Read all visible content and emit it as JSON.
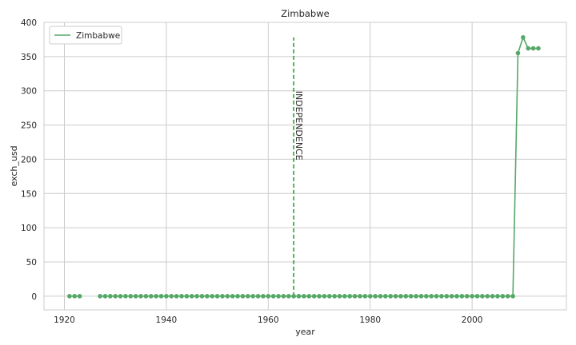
{
  "chart_data": {
    "type": "line",
    "title": "Zimbabwe",
    "xlabel": "year",
    "ylabel": "exch_usd",
    "xlim": [
      1916,
      2018.5
    ],
    "ylim": [
      -20,
      400
    ],
    "xticks": [
      1920,
      1940,
      1960,
      1980,
      2000
    ],
    "yticks": [
      0,
      50,
      100,
      150,
      200,
      250,
      300,
      350,
      400
    ],
    "grid": true,
    "legend": "top-left",
    "series": [
      {
        "name": "Zimbabwe",
        "color": "#55a868",
        "marker": "circle",
        "x": [
          1921,
          1922,
          1923,
          null,
          1927,
          1928,
          1929,
          1930,
          1931,
          1932,
          1933,
          1934,
          1935,
          1936,
          1937,
          1938,
          1939,
          1940,
          1941,
          1942,
          1943,
          1944,
          1945,
          1946,
          1947,
          1948,
          1949,
          1950,
          1951,
          1952,
          1953,
          1954,
          1955,
          1956,
          1957,
          1958,
          1959,
          1960,
          1961,
          1962,
          1963,
          1964,
          1965,
          1966,
          1967,
          1968,
          1969,
          1970,
          1971,
          1972,
          1973,
          1974,
          1975,
          1976,
          1977,
          1978,
          1979,
          1980,
          1981,
          1982,
          1983,
          1984,
          1985,
          1986,
          1987,
          1988,
          1989,
          1990,
          1991,
          1992,
          1993,
          1994,
          1995,
          1996,
          1997,
          1998,
          1999,
          2000,
          2001,
          2002,
          2003,
          2004,
          2005,
          2006,
          2007,
          2008,
          2009,
          2010,
          2011,
          2012,
          2013
        ],
        "y": [
          0,
          0,
          0,
          null,
          0,
          0,
          0,
          0,
          0,
          0,
          0,
          0,
          0,
          0,
          0,
          0,
          0,
          0,
          0,
          0,
          0,
          0,
          0,
          0,
          0,
          0,
          0,
          0,
          0,
          0,
          0,
          0,
          0,
          0,
          0,
          0,
          0,
          0,
          0,
          0,
          0,
          0,
          0,
          0,
          0,
          0,
          0,
          0,
          0,
          0,
          0,
          0,
          0,
          0,
          0,
          0,
          0,
          0,
          0,
          0,
          0,
          0,
          0,
          0,
          0,
          0,
          0,
          0,
          0,
          0,
          0,
          0,
          0,
          0,
          0,
          0,
          0,
          0,
          0,
          0,
          0,
          0,
          0,
          0,
          0,
          0,
          355,
          378,
          362,
          362,
          362
        ]
      }
    ],
    "annotations": [
      {
        "type": "vline",
        "x": 1965,
        "y_from": 0,
        "y_to": 378,
        "color": "#2ca02c",
        "style": "dashed",
        "text": "INDEPENDENCE",
        "text_y": 300
      }
    ]
  }
}
